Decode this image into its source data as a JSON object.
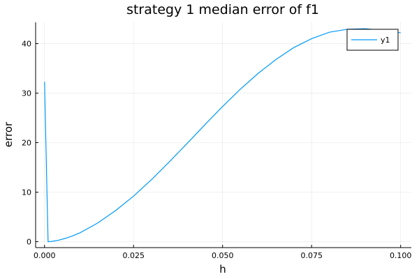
{
  "chart_data": {
    "type": "line",
    "title": "strategy 1 median error of f1",
    "xlabel": "h",
    "ylabel": "error",
    "xlim": [
      -0.0025,
      0.103
    ],
    "ylim": [
      -1.2,
      44.3
    ],
    "x_ticks": [
      0.0,
      0.025,
      0.05,
      0.075,
      0.1
    ],
    "x_tick_labels": [
      "0.000",
      "0.025",
      "0.050",
      "0.075",
      "0.100"
    ],
    "y_ticks": [
      0,
      10,
      20,
      30,
      40
    ],
    "y_tick_labels": [
      "0",
      "10",
      "20",
      "30",
      "40"
    ],
    "grid": true,
    "legend_position": "top-right",
    "series": [
      {
        "name": "y1",
        "color": "#009af9",
        "x": [
          0.0,
          0.001,
          0.002,
          0.004,
          0.006,
          0.008,
          0.01,
          0.015,
          0.02,
          0.025,
          0.03,
          0.035,
          0.04,
          0.045,
          0.05,
          0.055,
          0.06,
          0.065,
          0.07,
          0.075,
          0.08,
          0.085,
          0.09,
          0.095,
          0.1
        ],
        "y": [
          32.3,
          0.0,
          0.05,
          0.3,
          0.7,
          1.2,
          1.8,
          3.8,
          6.3,
          9.2,
          12.5,
          16.1,
          19.8,
          23.6,
          27.3,
          30.8,
          34.0,
          36.8,
          39.2,
          41.0,
          42.3,
          42.9,
          43.0,
          42.7,
          42.2
        ]
      }
    ]
  }
}
